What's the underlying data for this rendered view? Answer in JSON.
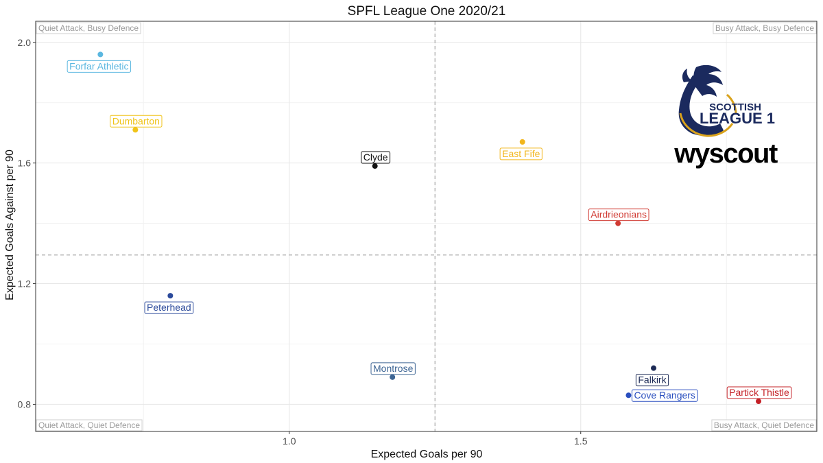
{
  "chart_data": {
    "type": "scatter",
    "title": "SPFL League One 2020/21",
    "xlabel": "Expected Goals per 90",
    "ylabel": "Expected Goals Against per 90",
    "xlim": [
      0.565,
      1.905
    ],
    "ylim": [
      0.71,
      2.07
    ],
    "xticks": [
      1.0,
      1.5
    ],
    "xtick_labels": [
      "1.0",
      "1.5"
    ],
    "yticks": [
      0.8,
      1.2,
      1.6,
      2.0
    ],
    "ytick_labels": [
      "0.8",
      "1.2",
      "1.6",
      "2.0"
    ],
    "x_reference_line": 1.25,
    "y_reference_line": 1.295,
    "grid": true,
    "quadrant_labels": {
      "top_left": "Quiet Attack, Busy Defence",
      "top_right": "Busy Attack, Busy Defence",
      "bottom_left": "Quiet Attack, Quiet Defence",
      "bottom_right": "Busy Attack, Quiet Defence"
    },
    "points": [
      {
        "team": "Forfar Athletic",
        "x": 0.676,
        "y": 1.96,
        "color": "#5bb7e0",
        "label_pos": "below"
      },
      {
        "team": "Dumbarton",
        "x": 0.736,
        "y": 1.71,
        "color": "#f0c419",
        "label_pos": "above"
      },
      {
        "team": "Clyde",
        "x": 1.147,
        "y": 1.59,
        "color": "#111111",
        "label_pos": "above"
      },
      {
        "team": "East Fife",
        "x": 1.4,
        "y": 1.67,
        "color": "#f2b61c",
        "label_pos": "below"
      },
      {
        "team": "Airdrieonians",
        "x": 1.564,
        "y": 1.4,
        "color": "#d03a32",
        "label_pos": "above"
      },
      {
        "team": "Peterhead",
        "x": 0.796,
        "y": 1.16,
        "color": "#2b4a9b",
        "label_pos": "below"
      },
      {
        "team": "Montrose",
        "x": 1.177,
        "y": 0.89,
        "color": "#3d6594",
        "label_pos": "above"
      },
      {
        "team": "Falkirk",
        "x": 1.625,
        "y": 0.92,
        "color": "#1c2a55",
        "label_pos": "below"
      },
      {
        "team": "Cove Rangers",
        "x": 1.582,
        "y": 0.83,
        "color": "#2a4fbf",
        "label_pos": "right"
      },
      {
        "team": "Partick Thistle",
        "x": 1.805,
        "y": 0.81,
        "color": "#c42026",
        "label_pos": "above"
      }
    ]
  },
  "logo": {
    "line1": "SCOTTISH",
    "line2": "LEAGUE 1",
    "brand": "wyscout",
    "navy": "#1b2a5e",
    "gold": "#d9a21b"
  }
}
